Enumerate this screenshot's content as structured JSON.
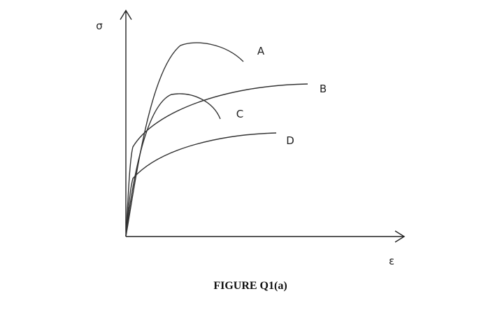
{
  "axes": {
    "y_label": "σ",
    "x_label": "ε"
  },
  "curves": [
    {
      "label": "A"
    },
    {
      "label": "B"
    },
    {
      "label": "C"
    },
    {
      "label": "D"
    }
  ],
  "caption": "FIGURE Q1(a)"
}
